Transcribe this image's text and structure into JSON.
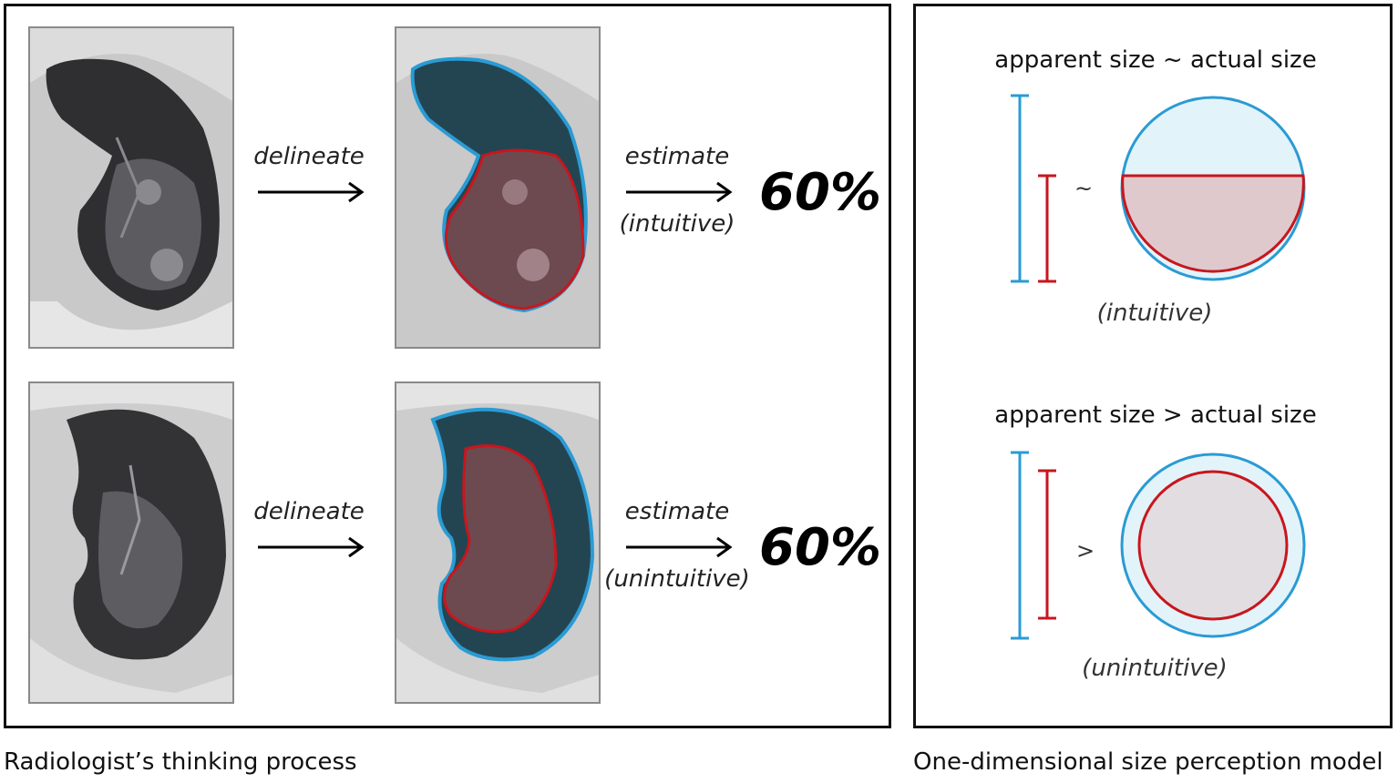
{
  "left_panel": {
    "rows": [
      {
        "delineate_label": "delineate",
        "estimate_label": "estimate",
        "qualifier": "(intuitive)",
        "percent": "60%"
      },
      {
        "delineate_label": "delineate",
        "estimate_label": "estimate",
        "qualifier": "(unintuitive)",
        "percent": "60%"
      }
    ],
    "caption": "Radiologist’s thinking process"
  },
  "right_panel": {
    "models": [
      {
        "title": "apparent size ~ actual size",
        "symbol": "~",
        "caption": "(intuitive)"
      },
      {
        "title": "apparent size > actual size",
        "symbol": ">",
        "caption": "(unintuitive)"
      }
    ],
    "caption": "One-dimensional size perception model"
  },
  "colors": {
    "outline_blue": "#2a9bd4",
    "outline_red": "#c8161d",
    "fill_blue": "#e3f3fa",
    "fill_red": "#e0c9cd",
    "fill_gray": "#e2dde1"
  }
}
